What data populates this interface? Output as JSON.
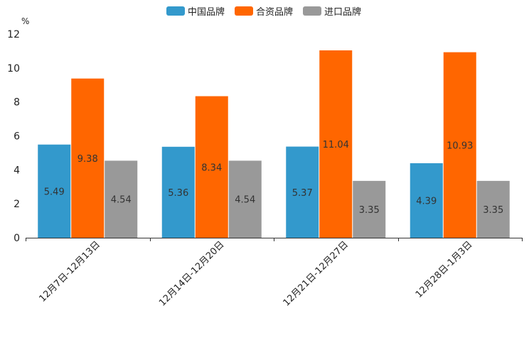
{
  "chart_data": {
    "type": "bar",
    "title": "",
    "xlabel": "",
    "ylabel": "",
    "y_unit": "%",
    "ylim": [
      0,
      12
    ],
    "yticks": [
      0,
      2,
      4,
      6,
      8,
      10,
      12
    ],
    "grid": false,
    "legend_position": "top-center",
    "categories": [
      "12月7日-12月13日",
      "12月14日-12月20日",
      "12月21日-12月27日",
      "12月28日-1月3日"
    ],
    "series": [
      {
        "name": "中国品牌",
        "color": "#3399cc",
        "values": [
          5.49,
          5.36,
          5.37,
          4.39
        ]
      },
      {
        "name": "合资品牌",
        "color": "#ff6600",
        "values": [
          9.38,
          8.34,
          11.04,
          10.93
        ]
      },
      {
        "name": "进口品牌",
        "color": "#999999",
        "values": [
          4.54,
          4.54,
          3.35,
          3.35
        ]
      }
    ]
  }
}
